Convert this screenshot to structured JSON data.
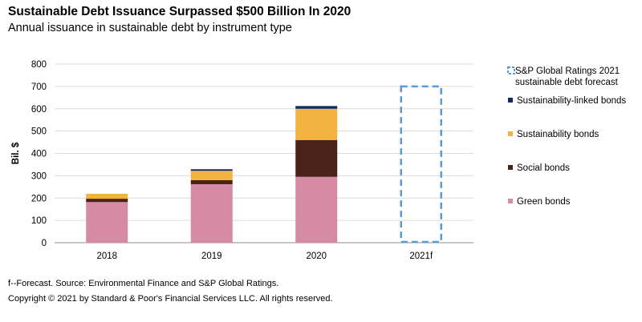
{
  "header": {
    "title": "Sustainable Debt Issuance Surpassed $500 Billion In 2020",
    "subtitle": "Annual issuance in sustainable debt by instrument type"
  },
  "chart_data": {
    "type": "bar",
    "stacked": true,
    "categories": [
      "2018",
      "2019",
      "2020",
      "2021f"
    ],
    "ylabel": "Bil. $",
    "xlabel": "",
    "ylim": [
      0,
      800
    ],
    "yticks": [
      0,
      100,
      200,
      300,
      400,
      500,
      600,
      700,
      800
    ],
    "grid": true,
    "legend_position": "right",
    "series": [
      {
        "name": "Green bonds",
        "color": "#d48ba3",
        "values": [
          182,
          262,
          295,
          0
        ]
      },
      {
        "name": "Social bonds",
        "color": "#4a2219",
        "values": [
          15,
          18,
          165,
          0
        ]
      },
      {
        "name": "Sustainability bonds",
        "color": "#f2b340",
        "values": [
          22,
          42,
          140,
          0
        ]
      },
      {
        "name": "Sustainability-linked bonds",
        "color": "#0d2a5c",
        "values": [
          0,
          7,
          12,
          0
        ]
      }
    ],
    "forecast": {
      "name": "S&P Global Ratings 2021 sustainable debt forecast",
      "category": "2021f",
      "value": 700,
      "color": "#5b9bd5"
    }
  },
  "footer": {
    "note": "f--Forecast. Source: Environmental Finance and S&P Global Ratings.",
    "copyright": "Copyright © 2021 by Standard & Poor's Financial Services LLC. All rights reserved."
  }
}
